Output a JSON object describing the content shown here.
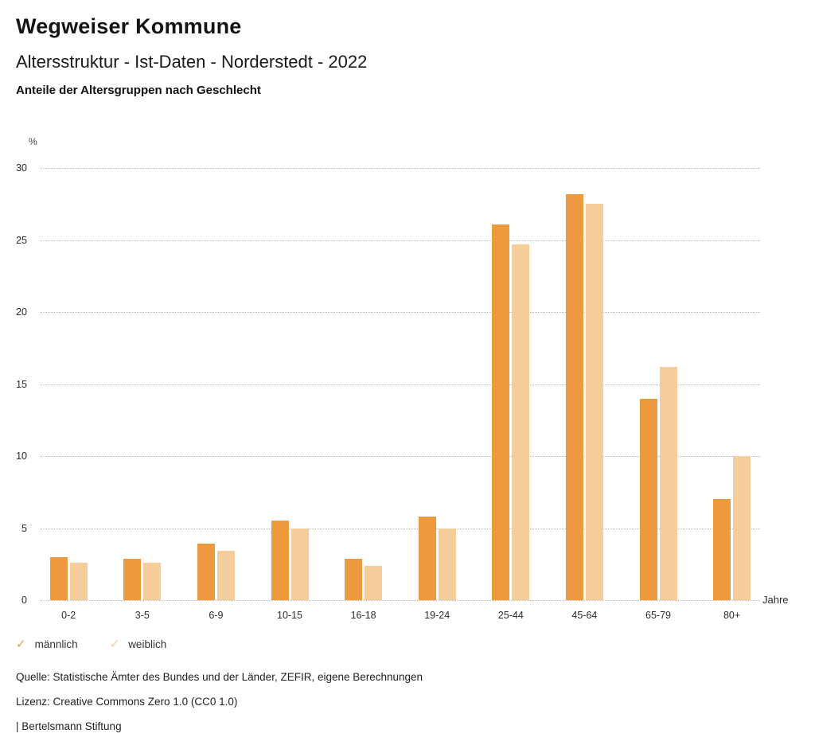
{
  "header": {
    "title": "Wegweiser Kommune",
    "subtitle": "Altersstruktur - Ist-Daten - Norderstedt - 2022",
    "heading": "Anteile der Altersgruppen nach Geschlecht"
  },
  "chart_data": {
    "type": "bar",
    "title": "Anteile der Altersgruppen nach Geschlecht",
    "unit_label": "%",
    "xlabel": "Jahre",
    "ylabel": "%",
    "ylim": [
      0,
      30
    ],
    "ytick_step": 5,
    "grid": true,
    "grid_style": "dotted",
    "legend_position": "bottom-left",
    "categories": [
      "0-2",
      "3-5",
      "6-9",
      "10-15",
      "16-18",
      "19-24",
      "25-44",
      "45-64",
      "65-79",
      "80+"
    ],
    "series": [
      {
        "name": "männlich",
        "color": "#EC9A3D",
        "values": [
          3.0,
          2.9,
          3.9,
          5.5,
          2.9,
          5.8,
          26.1,
          28.2,
          14.0,
          7.0
        ]
      },
      {
        "name": "weiblich",
        "color": "#F5CD9B",
        "values": [
          2.6,
          2.6,
          3.4,
          5.0,
          2.4,
          5.0,
          24.7,
          27.5,
          16.2,
          10.0
        ]
      }
    ]
  },
  "legend": {
    "check_glyph": "✓"
  },
  "footer": {
    "source": "Quelle: Statistische Ämter des Bundes und der Länder, ZEFIR, eigene Berechnungen",
    "license": "Lizenz: Creative Commons Zero 1.0 (CC0 1.0)",
    "attribution": "| Bertelsmann Stiftung"
  }
}
